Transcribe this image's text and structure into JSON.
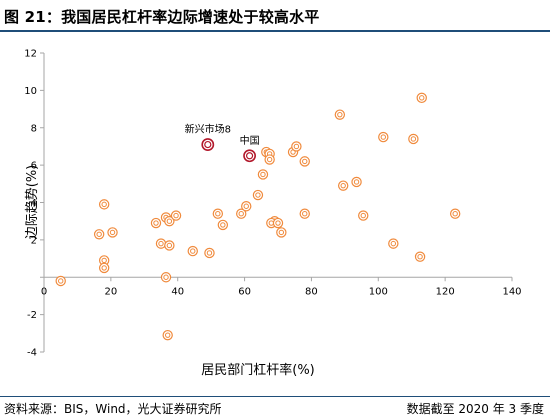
{
  "header": {
    "title": "图 21：我国居民杠杆率边际增速处于较高水平"
  },
  "footer": {
    "source": "资料来源：BIS，Wind，光大证券研究所",
    "date_note": "数据截至 2020 年 3 季度"
  },
  "colors": {
    "point_stroke": "#f08a3c",
    "highlight_stroke": "#b2182b",
    "axis": "#a6a6a6",
    "title_rule": "#1f4e79"
  },
  "chart_data": {
    "type": "scatter",
    "xlabel": "居民部门杠杆率(%)",
    "ylabel": "边际趋势(%)",
    "xlim": [
      0,
      140
    ],
    "ylim": [
      -4,
      12
    ],
    "xticks": [
      0,
      20,
      40,
      60,
      80,
      100,
      120,
      140
    ],
    "yticks": [
      -4,
      -2,
      0,
      2,
      4,
      6,
      8,
      10,
      12
    ],
    "grid": false,
    "legend": "none",
    "series": [
      {
        "points": [
          {
            "x": 5,
            "y": -0.2
          },
          {
            "x": 16.5,
            "y": 2.3
          },
          {
            "x": 18,
            "y": 3.9
          },
          {
            "x": 18,
            "y": 0.9
          },
          {
            "x": 18,
            "y": 0.5
          },
          {
            "x": 20.5,
            "y": 2.4
          },
          {
            "x": 33.5,
            "y": 2.9
          },
          {
            "x": 36.5,
            "y": 3.2
          },
          {
            "x": 37.5,
            "y": 3.0
          },
          {
            "x": 39.5,
            "y": 3.3
          },
          {
            "x": 35,
            "y": 1.8
          },
          {
            "x": 37.5,
            "y": 1.7
          },
          {
            "x": 36.5,
            "y": 0.0
          },
          {
            "x": 37,
            "y": -3.1
          },
          {
            "x": 44.5,
            "y": 1.4
          },
          {
            "x": 49.5,
            "y": 1.3
          },
          {
            "x": 52,
            "y": 3.4
          },
          {
            "x": 53.5,
            "y": 2.8
          },
          {
            "x": 59,
            "y": 3.4
          },
          {
            "x": 60.5,
            "y": 3.8
          },
          {
            "x": 64,
            "y": 4.4
          },
          {
            "x": 65.5,
            "y": 5.5
          },
          {
            "x": 66.5,
            "y": 6.7
          },
          {
            "x": 67.5,
            "y": 6.6
          },
          {
            "x": 67.5,
            "y": 6.3
          },
          {
            "x": 69,
            "y": 3.0
          },
          {
            "x": 68,
            "y": 2.9
          },
          {
            "x": 70,
            "y": 2.9
          },
          {
            "x": 71,
            "y": 2.4
          },
          {
            "x": 74.5,
            "y": 6.7
          },
          {
            "x": 75.5,
            "y": 7.0
          },
          {
            "x": 78,
            "y": 6.2
          },
          {
            "x": 78,
            "y": 3.4
          },
          {
            "x": 88.5,
            "y": 8.7
          },
          {
            "x": 89.5,
            "y": 4.9
          },
          {
            "x": 93.5,
            "y": 5.1
          },
          {
            "x": 95.5,
            "y": 3.3
          },
          {
            "x": 101.5,
            "y": 7.5
          },
          {
            "x": 104.5,
            "y": 1.8
          },
          {
            "x": 110.5,
            "y": 7.4
          },
          {
            "x": 112.5,
            "y": 1.1
          },
          {
            "x": 113,
            "y": 9.6
          },
          {
            "x": 123,
            "y": 3.4
          }
        ]
      }
    ],
    "annotations": [
      {
        "label": "新兴市场",
        "x": 49,
        "y": 7.1,
        "value_text": "8",
        "highlight": true
      },
      {
        "label": "中国",
        "x": 61.5,
        "y": 6.5,
        "highlight": true
      }
    ]
  }
}
